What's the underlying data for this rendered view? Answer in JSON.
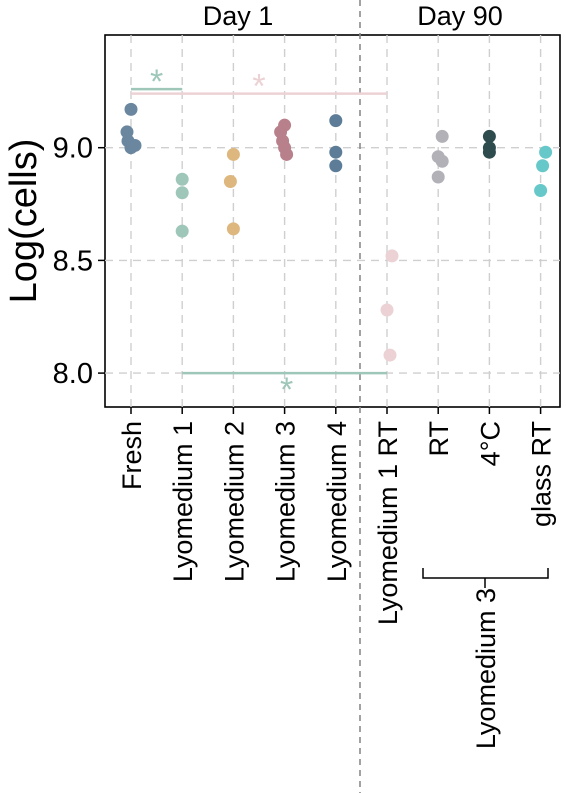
{
  "chart_data": {
    "type": "scatter",
    "ylabel": "Log(cells)",
    "ylim": [
      7.75,
      9.5
    ],
    "yticks": [
      "8.0",
      "8.5",
      "9.0"
    ],
    "grid": true,
    "panels": [
      "Day 1",
      "Day 90"
    ],
    "categories": [
      "Fresh",
      "Lyomedium 1",
      "Lyomedium 2",
      "Lyomedium 3",
      "Lyomedium 4",
      "Lyomedium 1  RT",
      "RT",
      "4°C",
      "glass RT"
    ],
    "bracket_label": "Lyomedium 3",
    "series": [
      {
        "category": "Fresh",
        "color": "#6b879f",
        "values": [
          9.17,
          9.07,
          9.03,
          9.0,
          9.01
        ]
      },
      {
        "category": "Lyomedium 1",
        "color": "#9fc7b9",
        "values": [
          8.86,
          8.8,
          8.63
        ]
      },
      {
        "category": "Lyomedium 2",
        "color": "#ddb77e",
        "values": [
          8.97,
          8.85,
          8.64
        ]
      },
      {
        "category": "Lyomedium 3",
        "color": "#b8808a",
        "values": [
          9.1,
          9.07,
          9.03,
          9.0,
          8.97
        ]
      },
      {
        "category": "Lyomedium 4",
        "color": "#5c7c97",
        "values": [
          9.12,
          8.98,
          8.92
        ]
      },
      {
        "category": "Lyomedium 1  RT",
        "color": "#ecd2d4",
        "values": [
          8.52,
          8.28,
          8.08
        ]
      },
      {
        "category": "RT",
        "color": "#b2b1b8",
        "values": [
          9.05,
          8.96,
          8.94,
          8.87
        ]
      },
      {
        "category": "4°C",
        "color": "#2e4b4e",
        "values": [
          9.05,
          9.0,
          8.98
        ]
      },
      {
        "category": "glass RT",
        "color": "#66c8c9",
        "values": [
          8.98,
          8.92,
          8.81
        ]
      }
    ],
    "annotations": [
      {
        "label": "*",
        "from": "Fresh",
        "to": "Lyomedium 1",
        "y": 9.26,
        "color": "#9fc7b9"
      },
      {
        "label": "*",
        "from": "Fresh",
        "to": "Lyomedium 1  RT",
        "y": 9.24,
        "color": "#ecd2d4"
      },
      {
        "label": "*",
        "from": "Lyomedium 1",
        "to": "Lyomedium 1  RT",
        "y": 8.0,
        "color": "#9fc7b9"
      }
    ]
  }
}
